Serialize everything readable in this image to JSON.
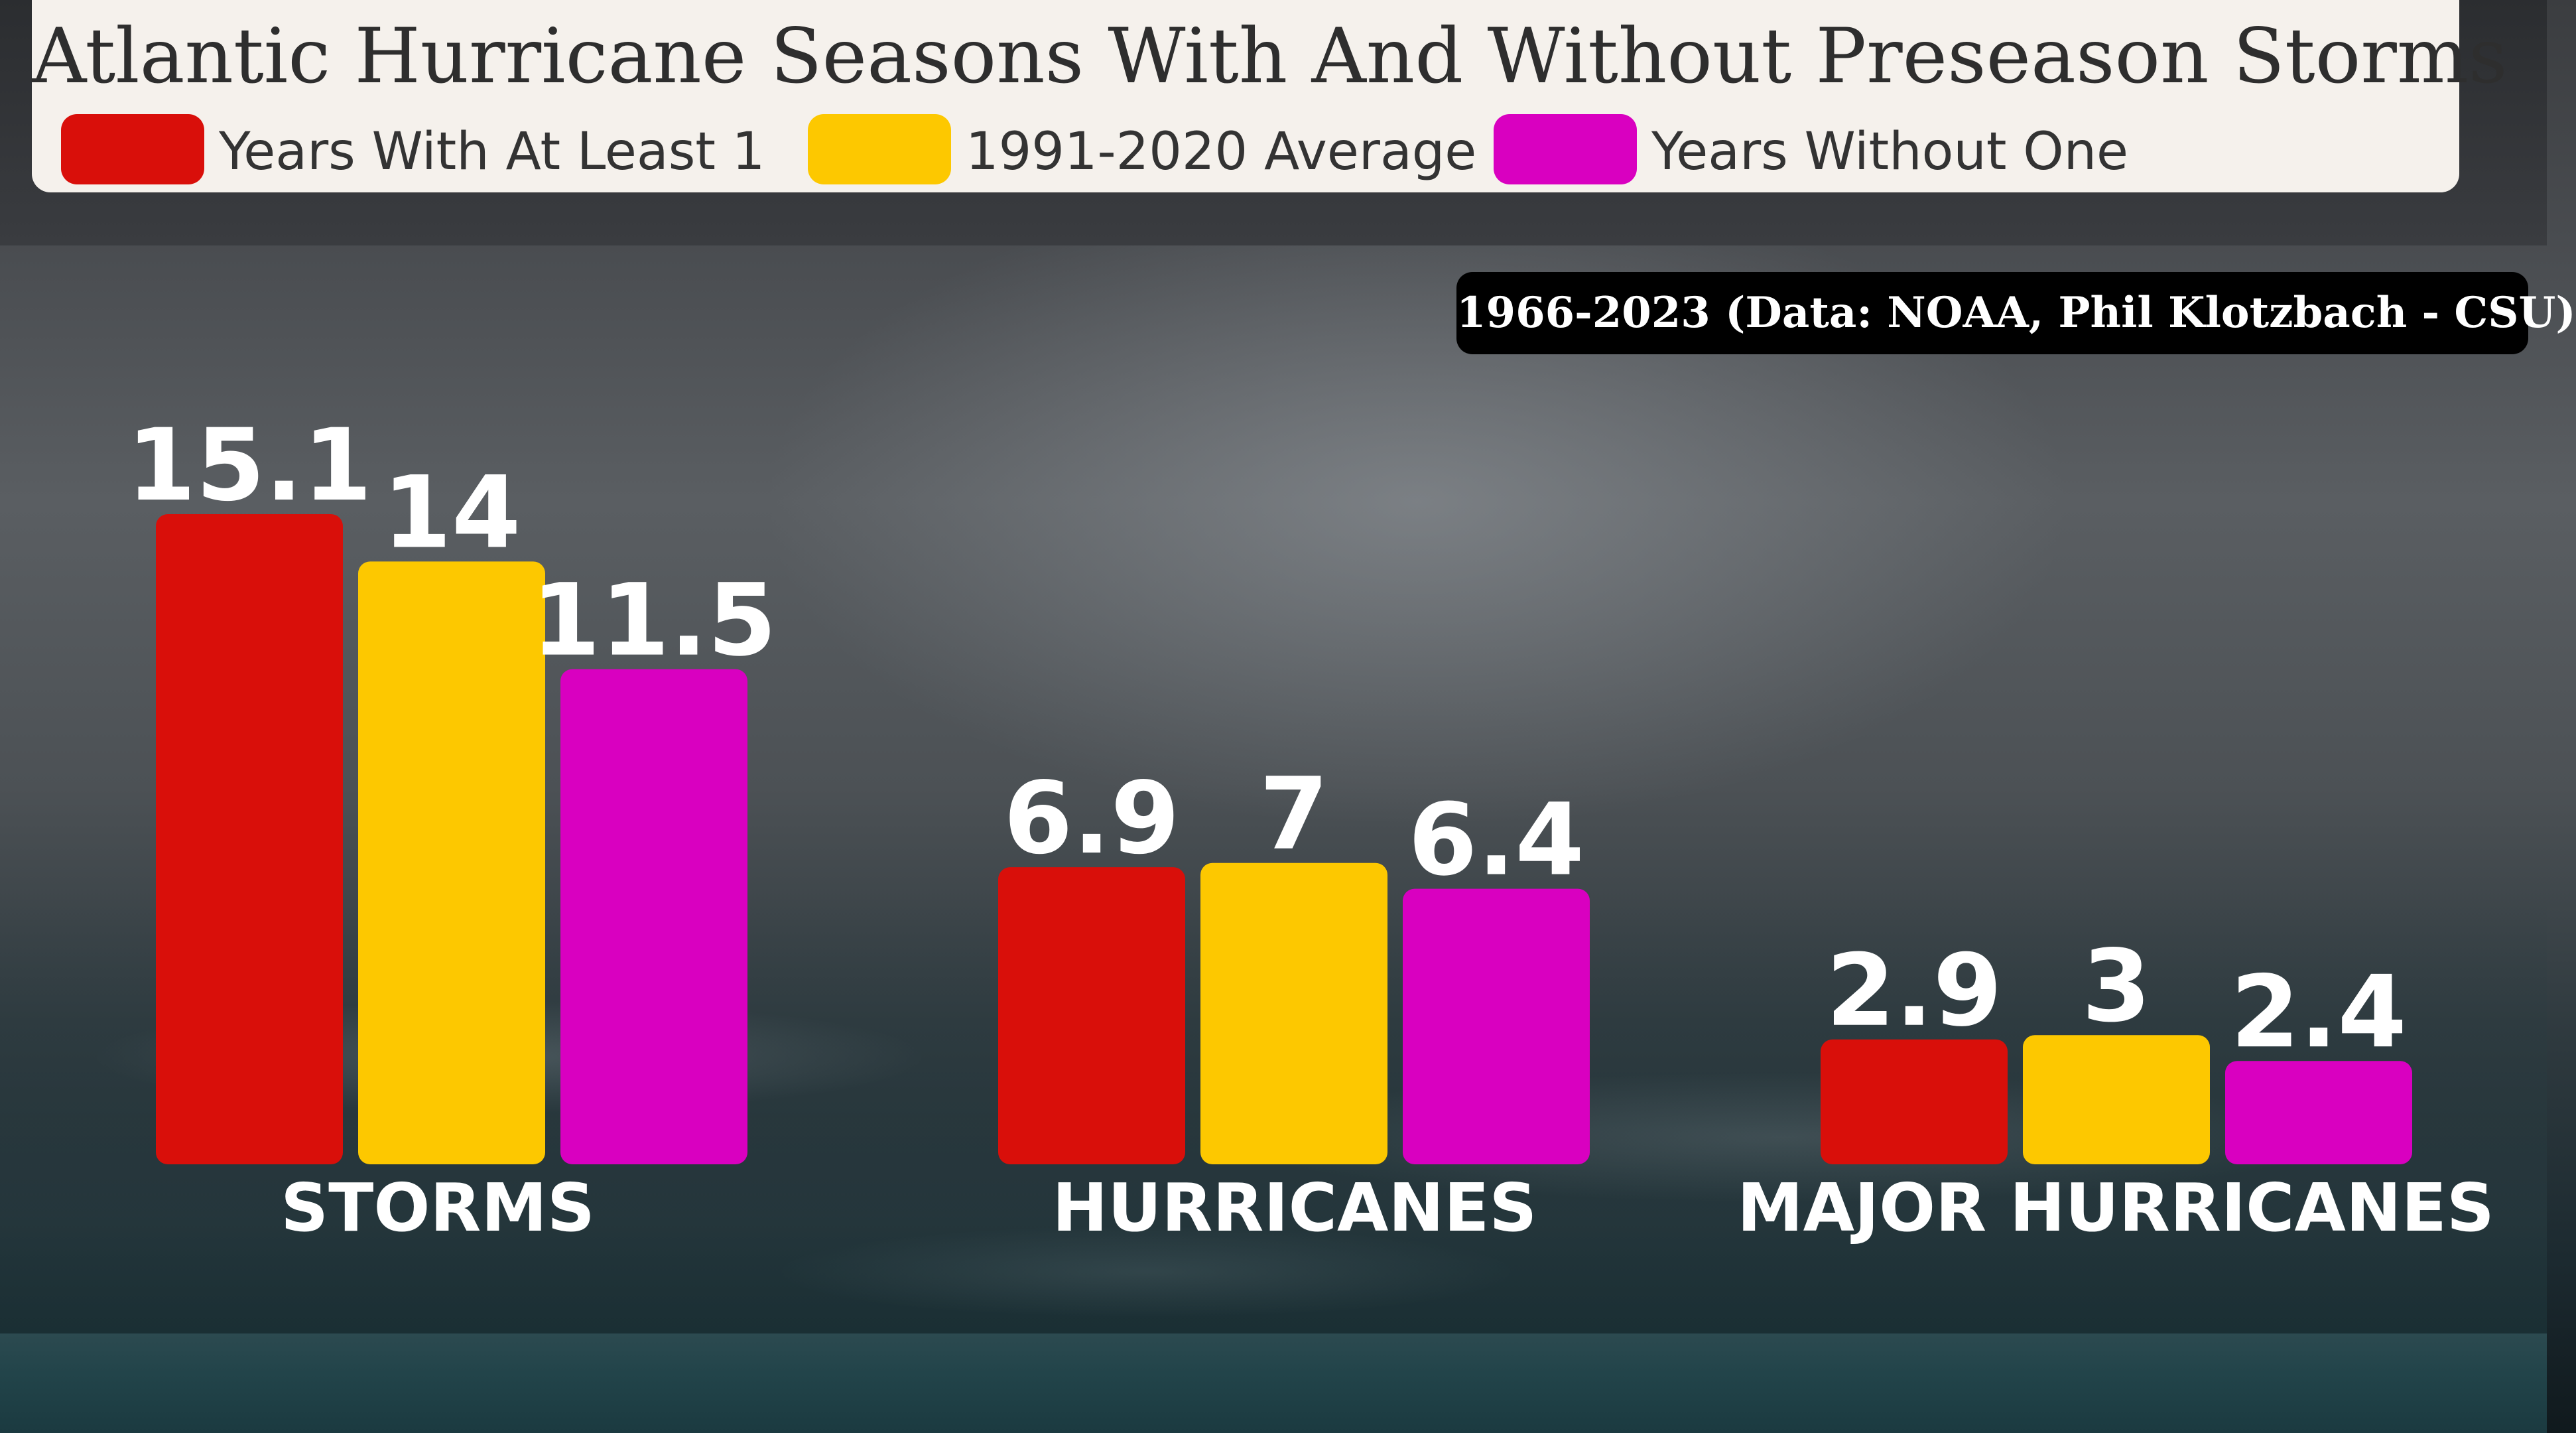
{
  "title": "Atlantic Hurricane Seasons With And Without Preseason Storms",
  "source": "1966-2023 (Data: NOAA, Phil Klotzbach - CSU)",
  "legend": [
    {
      "label": "Years With At Least 1",
      "color": "#d90f0a"
    },
    {
      "label": "1991-2020 Average",
      "color": "#fdc800"
    },
    {
      "label": "Years Without One",
      "color": "#d900c0"
    }
  ],
  "chart_data": {
    "type": "bar",
    "title": "Atlantic Hurricane Seasons With And Without Preseason Storms",
    "categories": [
      "STORMS",
      "HURRICANES",
      "MAJOR HURRICANES"
    ],
    "series": [
      {
        "name": "Years With At Least 1",
        "values": [
          15.1,
          6.9,
          2.9
        ],
        "color": "#d90f0a",
        "labels": [
          "15.1",
          "6.9",
          "2.9"
        ]
      },
      {
        "name": "1991-2020 Average",
        "values": [
          14,
          7,
          3
        ],
        "color": "#fdc800",
        "labels": [
          "14",
          "7",
          "3"
        ]
      },
      {
        "name": "Years Without One",
        "values": [
          11.5,
          6.4,
          2.4
        ],
        "color": "#d900c0",
        "labels": [
          "11.5",
          "6.4",
          "2.4"
        ]
      }
    ],
    "ylim": [
      0,
      15.1
    ],
    "grid": false,
    "legend_position": "top"
  }
}
